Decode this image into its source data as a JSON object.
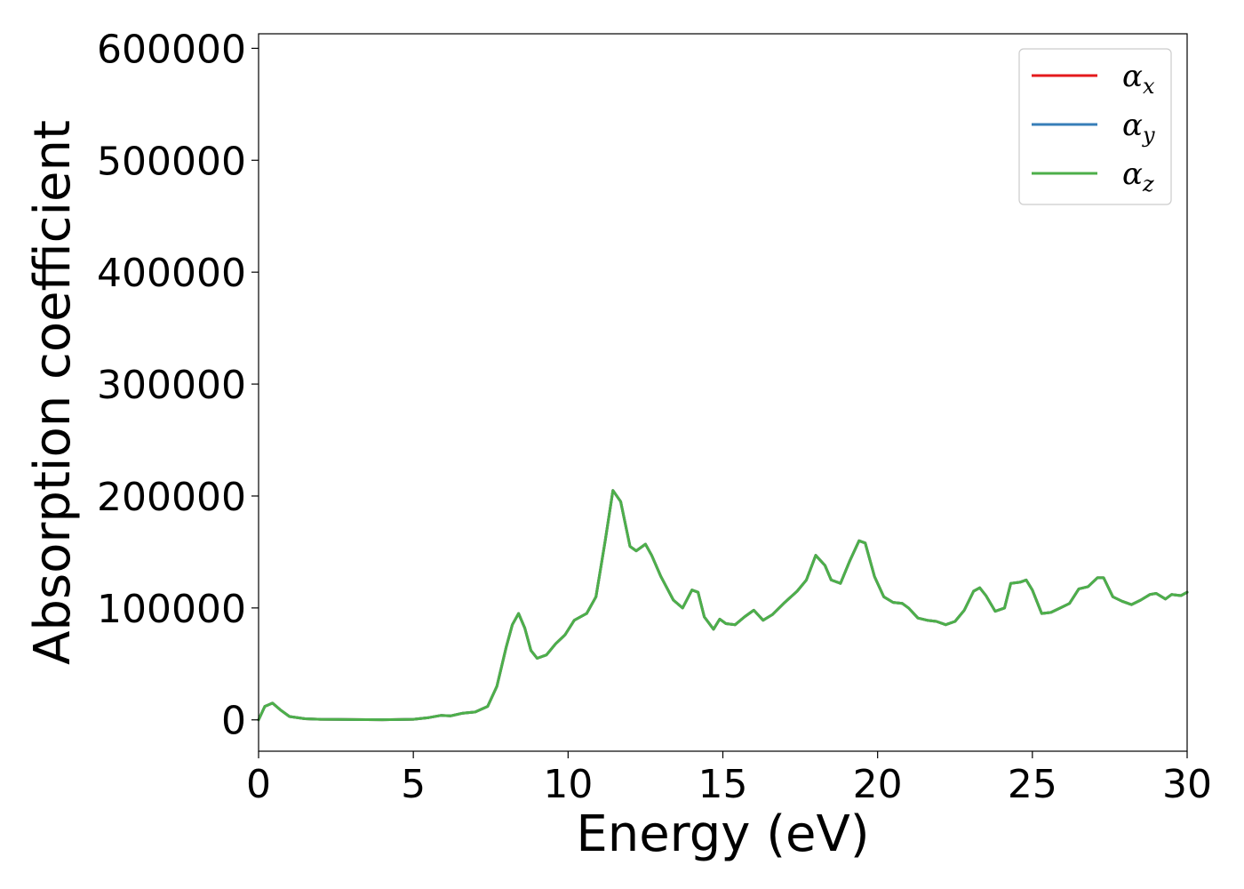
{
  "chart_data": {
    "type": "line",
    "title": "",
    "xlabel": "Energy (eV)",
    "ylabel": "Absorption coefficient",
    "xlim": [
      0,
      30
    ],
    "ylim": [
      -28000,
      613000
    ],
    "xticks": [
      0,
      5,
      10,
      15,
      20,
      25,
      30
    ],
    "xtick_labels": [
      "0",
      "5",
      "10",
      "15",
      "20",
      "25",
      "30"
    ],
    "yticks": [
      0,
      100000,
      200000,
      300000,
      400000,
      500000,
      600000
    ],
    "ytick_labels": [
      "0",
      "100000",
      "200000",
      "300000",
      "400000",
      "500000",
      "600000"
    ],
    "grid": false,
    "legend_position": "top-right",
    "colors": {
      "alpha_x": "#e41a1c",
      "alpha_y": "#377eb8",
      "alpha_z": "#4daf4a"
    },
    "series": [
      {
        "name": "α_x",
        "legend_symbol": "α",
        "legend_subscript": "x",
        "color": "#e41a1c",
        "x": [
          0,
          0.2,
          0.45,
          0.7,
          1.0,
          1.5,
          2,
          3,
          4,
          5,
          5.5,
          5.9,
          6.2,
          6.6,
          7.0,
          7.4,
          7.7,
          8.0,
          8.2,
          8.4,
          8.6,
          8.8,
          9.0,
          9.3,
          9.6,
          9.9,
          10.2,
          10.6,
          10.9,
          11.2,
          11.45,
          11.7,
          12.0,
          12.2,
          12.5,
          12.7,
          13.0,
          13.4,
          13.7,
          14.0,
          14.2,
          14.4,
          14.7,
          14.9,
          15.1,
          15.4,
          15.7,
          16.0,
          16.3,
          16.6,
          17.0,
          17.4,
          17.7,
          18.0,
          18.3,
          18.5,
          18.8,
          19.1,
          19.4,
          19.6,
          19.9,
          20.2,
          20.5,
          20.8,
          21.0,
          21.3,
          21.6,
          21.9,
          22.2,
          22.5,
          22.8,
          23.1,
          23.3,
          23.5,
          23.8,
          24.1,
          24.3,
          24.6,
          24.8,
          25.0,
          25.3,
          25.6,
          25.9,
          26.2,
          26.5,
          26.8,
          27.1,
          27.3,
          27.6,
          27.9,
          28.2,
          28.5,
          28.8,
          29.0,
          29.3,
          29.5,
          29.8,
          30.0
        ],
        "y": [
          0,
          12000,
          15000,
          9000,
          3000,
          1000,
          500,
          300,
          100,
          500,
          2000,
          4000,
          3500,
          6000,
          7000,
          12000,
          30000,
          65000,
          85000,
          95000,
          82000,
          62000,
          55000,
          58000,
          68000,
          76000,
          89000,
          95000,
          110000,
          160000,
          205000,
          195000,
          155000,
          151000,
          157000,
          147000,
          128000,
          107000,
          100000,
          116000,
          114000,
          92000,
          81000,
          90000,
          86000,
          85000,
          92000,
          98000,
          89000,
          94000,
          105000,
          115000,
          125000,
          147000,
          138000,
          125000,
          122000,
          142000,
          160000,
          158000,
          128000,
          110000,
          105000,
          104000,
          100000,
          91000,
          89000,
          88000,
          85000,
          88000,
          98000,
          115000,
          118000,
          111000,
          97000,
          100000,
          122000,
          123000,
          125000,
          116000,
          95000,
          96000,
          100000,
          104000,
          117000,
          119000,
          127000,
          127000,
          110000,
          106000,
          103000,
          107000,
          112000,
          113000,
          108000,
          112000,
          111000,
          114000
        ]
      },
      {
        "name": "α_y",
        "legend_symbol": "α",
        "legend_subscript": "y",
        "color": "#377eb8",
        "same_as": "α_x"
      },
      {
        "name": "α_z",
        "legend_symbol": "α",
        "legend_subscript": "z",
        "color": "#4daf4a",
        "same_as": "α_x"
      }
    ]
  }
}
